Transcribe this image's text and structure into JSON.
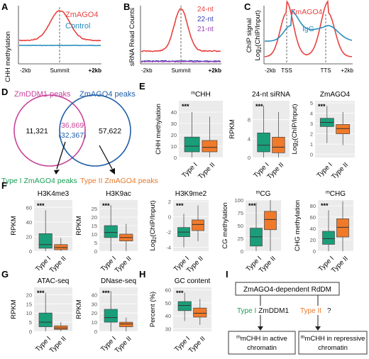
{
  "panels": {
    "A": {
      "letter": "A",
      "ylabel": "CHH methylation",
      "xticks": [
        "-2kb",
        "Summit",
        "+2kb"
      ],
      "legend": [
        {
          "label": "ZmAGO4",
          "color": "#e8423f"
        },
        {
          "label": "Control",
          "color": "#2a8fc0"
        }
      ]
    },
    "B": {
      "letter": "B",
      "ylabel": "sRNA Read Counts",
      "xticks": [
        "-2kb",
        "Summit",
        "+2kb"
      ],
      "legend": [
        {
          "label": "24-nt",
          "color": "#e8423f"
        },
        {
          "label": "22-nt",
          "color": "#3b3fb0"
        },
        {
          "label": "21-nt",
          "color": "#9b3fb5"
        }
      ]
    },
    "C": {
      "letter": "C",
      "ylabel_line1": "ChIP signal",
      "ylabel_line2": "Log",
      "ylabel_sub": "2",
      "ylabel_rest": "(ChIP/Input)",
      "xticks": [
        "-2kb",
        "TSS",
        "TTS",
        "+2kb"
      ],
      "legend": [
        {
          "label": "ZmAGO4",
          "color": "#e8423f"
        },
        {
          "label": "IgG",
          "color": "#2a8fc0"
        }
      ]
    },
    "D": {
      "letter": "D",
      "left_title": "ZmDDM1 peaks",
      "right_title": "ZmAGO4 peaks",
      "left_count": "11,321",
      "overlap_count": "36,869",
      "overlap_sub": "(32,367)",
      "right_count": "57,622",
      "type1_label": "Type I ZmAGO4 peaks",
      "type2_label": "Type II ZmAGO4 peaks"
    },
    "E": {
      "letter": "E"
    },
    "F": {
      "letter": "F"
    },
    "G": {
      "letter": "G"
    },
    "H": {
      "letter": "H"
    },
    "I": {
      "letter": "I",
      "top_box": "ZmAGO4-dependent RdDM",
      "type1": "Type I",
      "type1_partner": "ZmDDM1",
      "type2": "Type II",
      "type2_partner": "?",
      "left_box_line1": "mCHH in active",
      "left_box_line2": "chromatin",
      "right_box_line1": "mCHH in repressive",
      "right_box_line2": "chromatin"
    }
  },
  "colors": {
    "type1": "#1a9e7a",
    "type2": "#f07a2a",
    "red": "#e8423f",
    "blue": "#2a8fc0",
    "purple": "#9b3fb5",
    "navy": "#3b3fb0",
    "panel_bg": "#ebebeb",
    "magenta": "#c8449a",
    "venn_blue": "#1f5fa8",
    "type1_text": "#1a9e55",
    "type2_text": "#e8782a"
  },
  "chart_data": [
    {
      "type": "line",
      "panel": "A",
      "ylabel": "CHH methylation",
      "x": [
        "-2kb",
        "Summit",
        "+2kb"
      ],
      "series": [
        {
          "name": "ZmAGO4",
          "shape": "peak",
          "baseline": 0.3,
          "peak": 1.0
        },
        {
          "name": "Control",
          "shape": "flat",
          "baseline": 0.05
        }
      ]
    },
    {
      "type": "line",
      "panel": "B",
      "ylabel": "sRNA Read Counts",
      "x": [
        "-2kb",
        "Summit",
        "+2kb"
      ],
      "series": [
        {
          "name": "24-nt",
          "shape": "peak",
          "baseline": 0.3,
          "peak": 1.0
        },
        {
          "name": "22-nt",
          "shape": "flat",
          "baseline": 0.02
        },
        {
          "name": "21-nt",
          "shape": "flat",
          "baseline": 0.03
        }
      ]
    },
    {
      "type": "line",
      "panel": "C",
      "ylabel": "ChIP signal Log2(ChIP/Input)",
      "x": [
        "-2kb",
        "TSS",
        "TTS",
        "+2kb"
      ],
      "series": [
        {
          "name": "ZmAGO4",
          "shape": "double-peak"
        },
        {
          "name": "IgG",
          "shape": "low"
        }
      ]
    },
    {
      "type": "box",
      "panel": "E1",
      "title": "mCHH",
      "title_sup": "m",
      "title_main": "CHH",
      "ylabel": "CHH methylation",
      "categories": [
        "Type I",
        "Type II"
      ],
      "ylim": [
        0,
        50
      ],
      "yticks": [
        0,
        10,
        20,
        30,
        40
      ],
      "sig": "***",
      "boxes": [
        {
          "min": 0,
          "q1": 5,
          "median": 10,
          "q3": 18,
          "max": 40
        },
        {
          "min": 0,
          "q1": 5,
          "median": 9,
          "q3": 15,
          "max": 36
        }
      ]
    },
    {
      "type": "box",
      "panel": "E2",
      "title": "24-nt siRNA",
      "ylabel": "RPKM",
      "categories": [
        "Type I",
        "Type II"
      ],
      "ylim": [
        0,
        12
      ],
      "yticks": [
        0,
        4,
        8
      ],
      "sig": "***",
      "boxes": [
        {
          "min": 0,
          "q1": 1.2,
          "median": 2.6,
          "q3": 5.2,
          "max": 11
        },
        {
          "min": 0,
          "q1": 1.0,
          "median": 2.2,
          "q3": 4.3,
          "max": 9.6
        }
      ]
    },
    {
      "type": "box",
      "panel": "E3",
      "title": "ZmAGO4",
      "ylabel_main": "Log",
      "ylabel_sub": "2",
      "ylabel_rest": "(ChIP/Input)",
      "categories": [
        "Type I",
        "Type II"
      ],
      "ylim": [
        -0.3,
        5.2
      ],
      "yticks": [
        0,
        1,
        2,
        3,
        4,
        5
      ],
      "sig": "***",
      "boxes": [
        {
          "min": 1.1,
          "q1": 2.7,
          "median": 3.1,
          "q3": 3.5,
          "max": 4.7
        },
        {
          "min": 0.9,
          "q1": 2.0,
          "median": 2.5,
          "q3": 2.9,
          "max": 4.1
        }
      ]
    },
    {
      "type": "box",
      "panel": "F1",
      "title": "H3K4me3",
      "ylabel": "RPKM",
      "categories": [
        "Type I",
        "Type II"
      ],
      "ylim": [
        0,
        70
      ],
      "yticks": [
        0,
        20,
        40,
        60
      ],
      "sig": "***",
      "boxes": [
        {
          "min": 0,
          "q1": 4,
          "median": 9,
          "q3": 24,
          "max": 56
        },
        {
          "min": 0,
          "q1": 2,
          "median": 5,
          "q3": 9,
          "max": 18
        }
      ]
    },
    {
      "type": "box",
      "panel": "F2",
      "title": "H3K9ac",
      "ylabel": "RPKM",
      "categories": [
        "Type I",
        "Type II"
      ],
      "ylim": [
        0,
        30
      ],
      "yticks": [
        0,
        5,
        10,
        15,
        20,
        25
      ],
      "sig": "***",
      "boxes": [
        {
          "min": 0,
          "q1": 8,
          "median": 11,
          "q3": 15,
          "max": 27
        },
        {
          "min": 0,
          "q1": 6,
          "median": 8,
          "q3": 10,
          "max": 16
        }
      ]
    },
    {
      "type": "box",
      "panel": "F3",
      "title": "H3K9me2",
      "ylabel_main": "Log",
      "ylabel_sub": "2",
      "ylabel_rest": "(ChIP/Input)",
      "categories": [
        "Type I",
        "Type II"
      ],
      "ylim": [
        -4.5,
        2.2
      ],
      "yticks": [
        -4,
        -2,
        0,
        2
      ],
      "sig": "***",
      "boxes": [
        {
          "min": -4.0,
          "q1": -2.6,
          "median": -2.0,
          "q3": -1.4,
          "max": 0.4
        },
        {
          "min": -3.2,
          "q1": -1.8,
          "median": -1.0,
          "q3": -0.4,
          "max": 1.5
        }
      ]
    },
    {
      "type": "box",
      "panel": "F4",
      "title": "mCG",
      "title_sup": "m",
      "title_main": "CG",
      "ylabel": "CG methylation",
      "categories": [
        "Type I",
        "Type II"
      ],
      "ylim": [
        0,
        100
      ],
      "yticks": [
        0,
        25,
        50,
        75,
        100
      ],
      "sig": "***",
      "boxes": [
        {
          "min": 0,
          "q1": 10,
          "median": 28,
          "q3": 45,
          "max": 95
        },
        {
          "min": 0,
          "q1": 42,
          "median": 62,
          "q3": 78,
          "max": 100
        }
      ]
    },
    {
      "type": "box",
      "panel": "F5",
      "title": "mCHG",
      "title_sup": "m",
      "title_main": "CHG",
      "ylabel": "CHG methylation",
      "categories": [
        "Type I",
        "Type II"
      ],
      "ylim": [
        0,
        90
      ],
      "yticks": [
        0,
        20,
        40,
        60,
        80
      ],
      "sig": "***",
      "boxes": [
        {
          "min": 0,
          "q1": 12,
          "median": 22,
          "q3": 35,
          "max": 72
        },
        {
          "min": 0,
          "q1": 25,
          "median": 42,
          "q3": 57,
          "max": 88
        }
      ]
    },
    {
      "type": "box",
      "panel": "G1",
      "title": "ATAC-seq",
      "ylabel": "RPKM",
      "categories": [
        "Type I",
        "Type II"
      ],
      "ylim": [
        0,
        24
      ],
      "yticks": [
        0,
        5,
        10,
        15,
        20
      ],
      "sig": "***",
      "boxes": [
        {
          "min": 0,
          "q1": 2.5,
          "median": 5,
          "q3": 10,
          "max": 21
        },
        {
          "min": 0,
          "q1": 1,
          "median": 1.8,
          "q3": 3,
          "max": 5
        }
      ]
    },
    {
      "type": "box",
      "panel": "G2",
      "title": "DNase-seq",
      "ylabel": "RPKM",
      "categories": [
        "Type I",
        "Type II"
      ],
      "ylim": [
        0,
        48
      ],
      "yticks": [
        0,
        10,
        20,
        30,
        40
      ],
      "sig": "***",
      "boxes": [
        {
          "min": 0,
          "q1": 10,
          "median": 15,
          "q3": 24,
          "max": 44
        },
        {
          "min": 0,
          "q1": 5,
          "median": 8,
          "q3": 10,
          "max": 15
        }
      ]
    },
    {
      "type": "box",
      "panel": "H1",
      "title": "GC content",
      "ylabel": "Percent (%)",
      "categories": [
        "Type I",
        "Type II"
      ],
      "ylim": [
        28,
        62
      ],
      "yticks": [
        30,
        40,
        50,
        60
      ],
      "sig": "***",
      "boxes": [
        {
          "min": 36,
          "q1": 44,
          "median": 48,
          "q3": 51,
          "max": 58
        },
        {
          "min": 33,
          "q1": 39,
          "median": 42,
          "q3": 46,
          "max": 53
        }
      ]
    }
  ]
}
